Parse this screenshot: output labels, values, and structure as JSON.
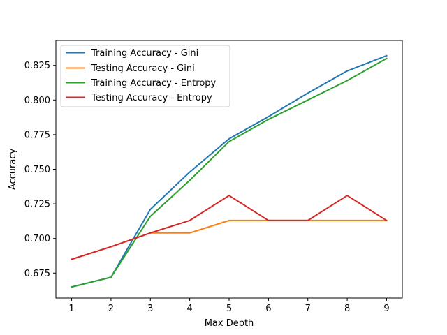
{
  "chart_data": {
    "type": "line",
    "title": "",
    "xlabel": "Max Depth",
    "ylabel": "Accuracy",
    "x": [
      1,
      2,
      3,
      4,
      5,
      6,
      7,
      8,
      9
    ],
    "xlim": [
      0.6,
      9.4
    ],
    "ylim": [
      0.657,
      0.843
    ],
    "xticks": [
      "1",
      "2",
      "3",
      "4",
      "5",
      "6",
      "7",
      "8",
      "9"
    ],
    "yticks": [
      "0.675",
      "0.700",
      "0.725",
      "0.750",
      "0.775",
      "0.800",
      "0.825"
    ],
    "ytick_values": [
      0.675,
      0.7,
      0.725,
      0.75,
      0.775,
      0.8,
      0.825
    ],
    "grid": false,
    "legend_position": "top-left",
    "series": [
      {
        "name": "Training Accuracy - Gini",
        "color": "#1f77b4",
        "values": [
          0.665,
          0.672,
          0.721,
          0.748,
          0.772,
          0.788,
          0.805,
          0.821,
          0.832
        ]
      },
      {
        "name": "Testing Accuracy - Gini",
        "color": "#ff7f0e",
        "values": [
          0.685,
          0.694,
          0.704,
          0.704,
          0.713,
          0.713,
          0.713,
          0.713,
          0.713
        ]
      },
      {
        "name": "Training Accuracy - Entropy",
        "color": "#2ca02c",
        "values": [
          0.665,
          0.672,
          0.716,
          0.742,
          0.77,
          0.786,
          0.8,
          0.814,
          0.83
        ]
      },
      {
        "name": "Testing Accuracy - Entropy",
        "color": "#d62728",
        "values": [
          0.685,
          0.694,
          0.704,
          0.713,
          0.731,
          0.713,
          0.713,
          0.731,
          0.713
        ]
      }
    ]
  }
}
